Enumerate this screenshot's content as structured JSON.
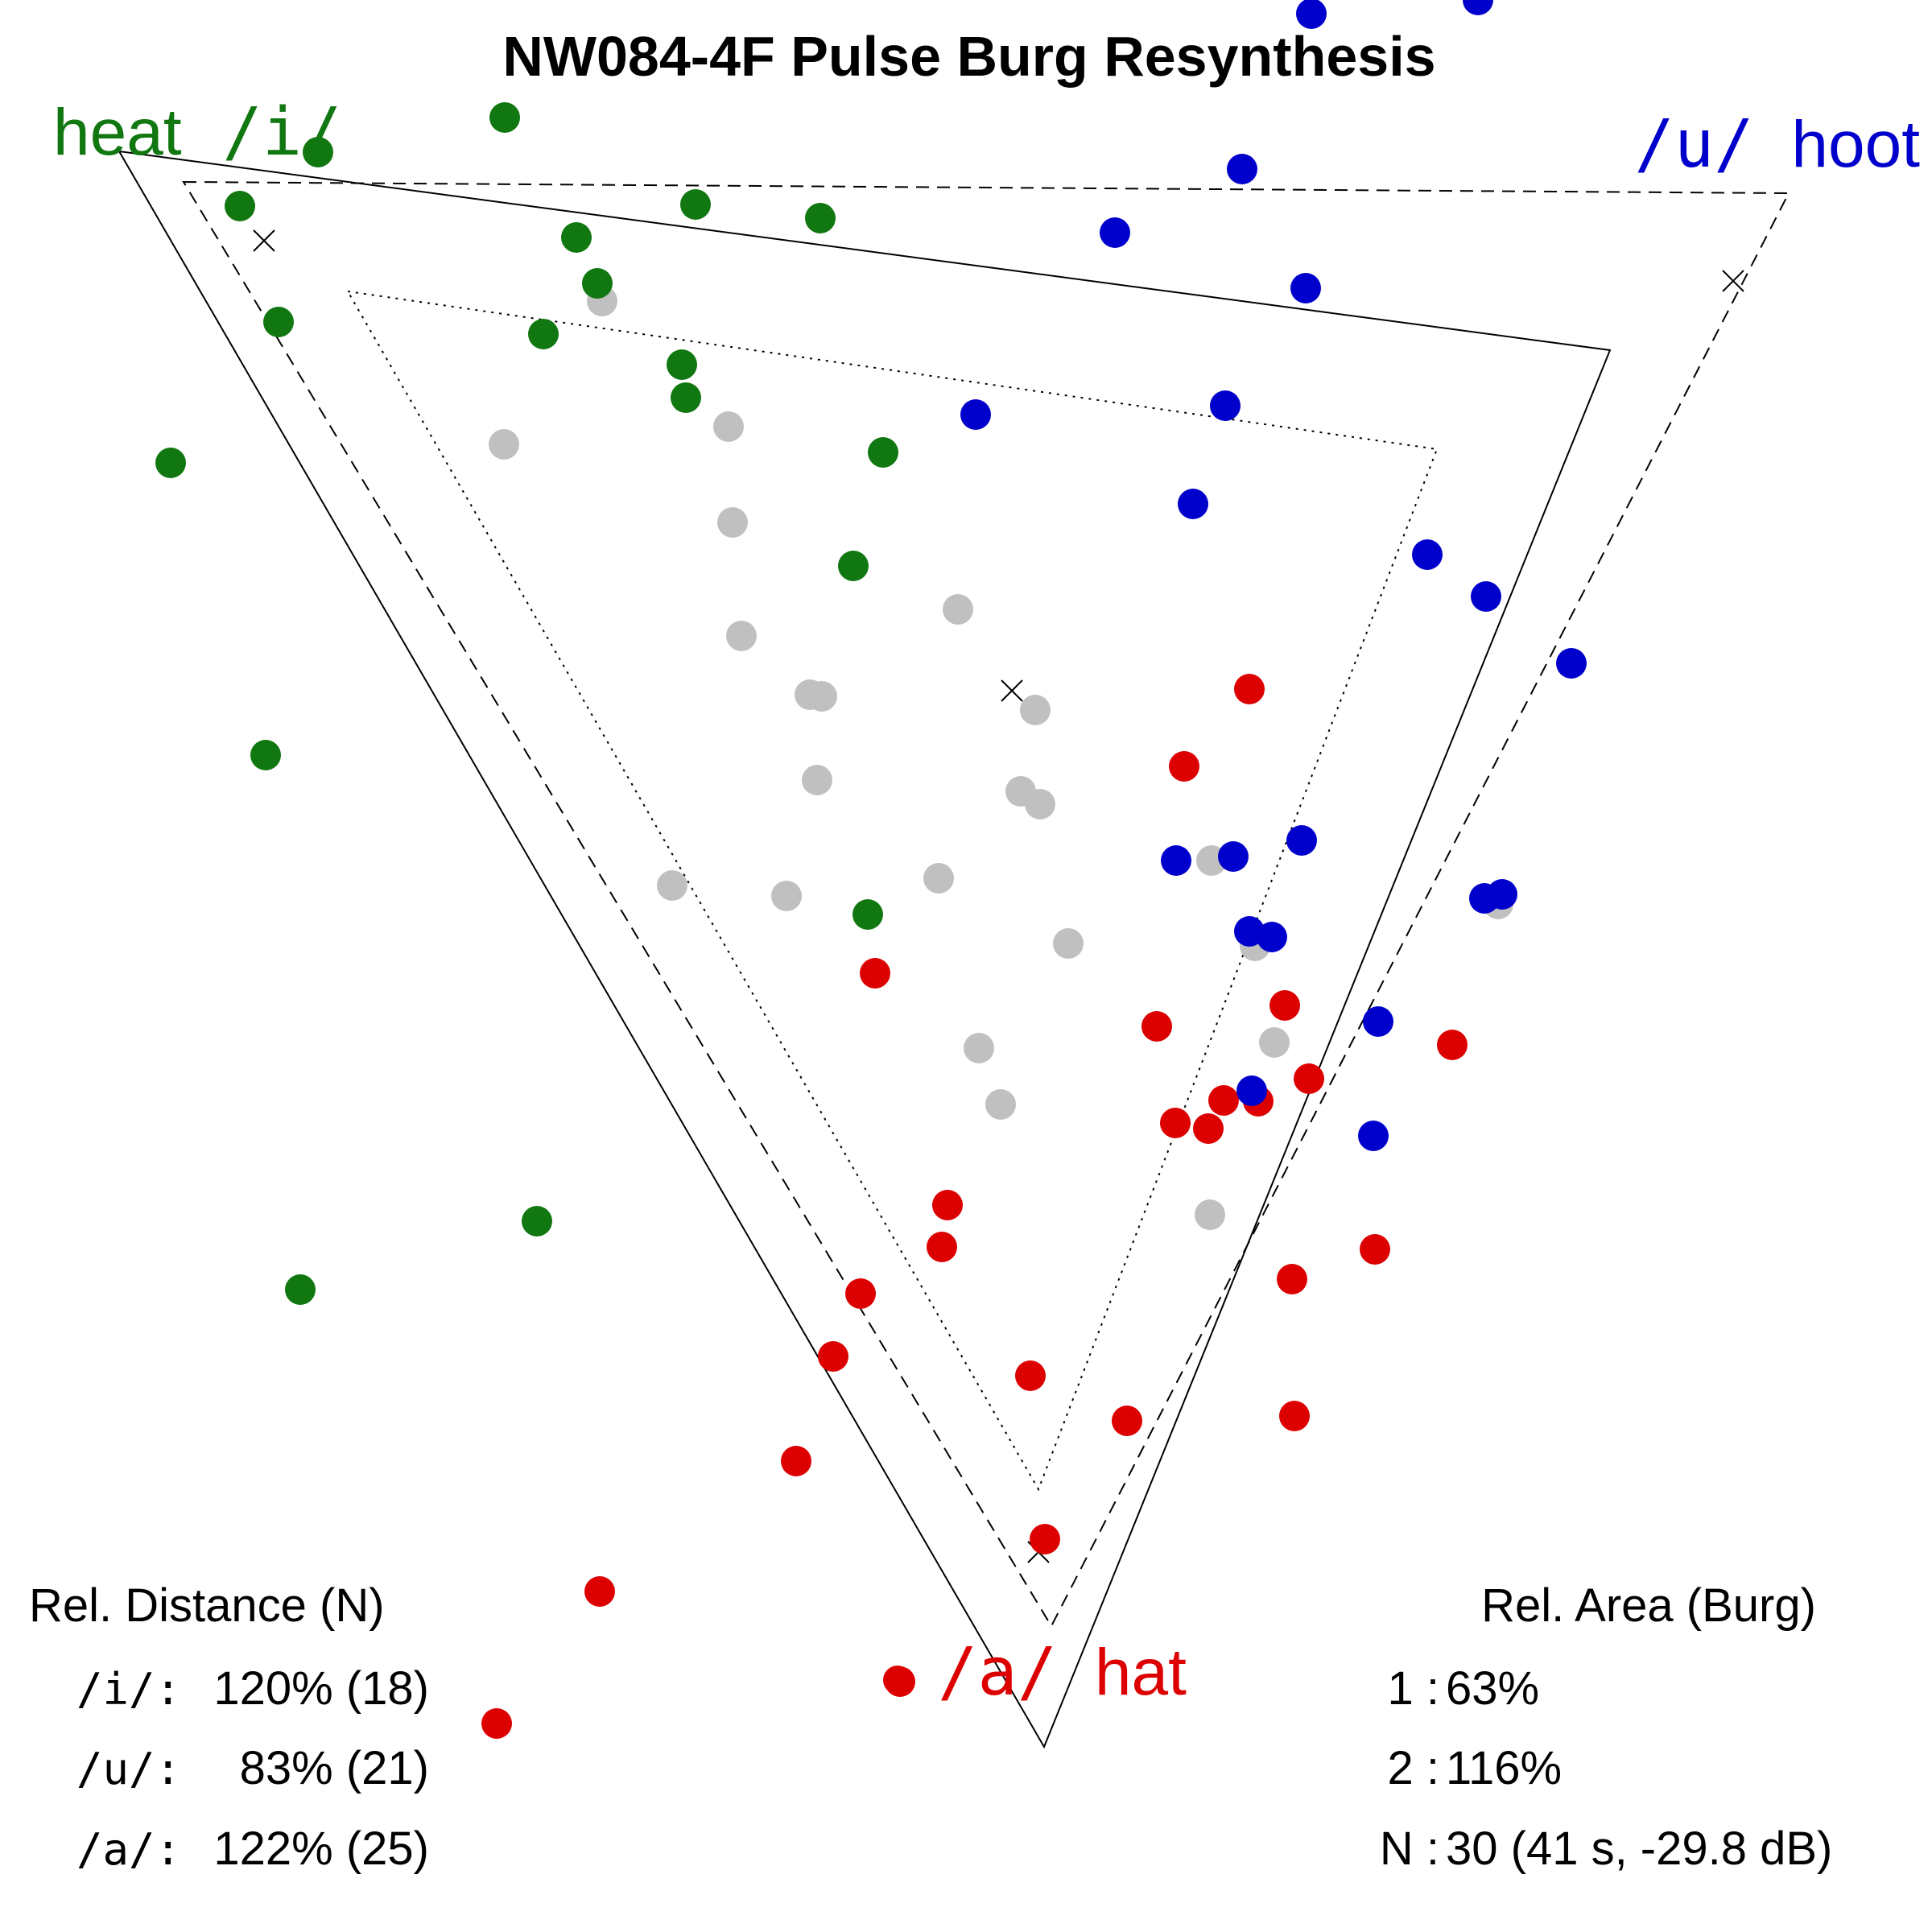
{
  "chart_data": {
    "type": "scatter",
    "title": "NW084-4F Pulse Burg Resynthesis",
    "x_range": [
      0,
      2400
    ],
    "y_range": [
      0,
      2400
    ],
    "grid": false,
    "vowel_labels": {
      "i": {
        "word": "heat",
        "ipa": "/i/",
        "color": "#117711"
      },
      "u": {
        "ipa": "/u/",
        "word": "hoot",
        "color": "#0000cc"
      },
      "a": {
        "ipa": "/a/",
        "word": "hat",
        "color": "#dd0000"
      }
    },
    "triangles": [
      {
        "style": "solid",
        "points": [
          [
            148,
            188
          ],
          [
            2000,
            435
          ],
          [
            1297,
            2170
          ]
        ]
      },
      {
        "style": "dashed",
        "points": [
          [
            228,
            226
          ],
          [
            2222,
            240
          ],
          [
            1306,
            2020
          ]
        ]
      },
      {
        "style": "dotted",
        "points": [
          [
            432,
            362
          ],
          [
            1785,
            558
          ],
          [
            1290,
            1850
          ]
        ]
      }
    ],
    "centroids": [
      [
        328,
        299
      ],
      [
        2153,
        349
      ],
      [
        1290,
        1928
      ],
      [
        1257,
        858
      ]
    ],
    "series": [
      {
        "name": "/i/",
        "color": "#117711",
        "points": [
          [
            627,
            146
          ],
          [
            395,
            189
          ],
          [
            298,
            256
          ],
          [
            864,
            254
          ],
          [
            1019,
            271
          ],
          [
            716,
            295
          ],
          [
            742,
            352
          ],
          [
            346,
            400
          ],
          [
            675,
            415
          ],
          [
            847,
            453
          ],
          [
            852,
            494
          ],
          [
            1097,
            562
          ],
          [
            212,
            575
          ],
          [
            1060,
            703
          ],
          [
            330,
            938
          ],
          [
            1078,
            1136
          ],
          [
            667,
            1517
          ],
          [
            373,
            1602
          ]
        ]
      },
      {
        "name": "/u/",
        "color": "#0000cc",
        "points": [
          [
            1629,
            17
          ],
          [
            1836,
            0
          ],
          [
            1543,
            210
          ],
          [
            1385,
            289
          ],
          [
            1622,
            358
          ],
          [
            1212,
            515
          ],
          [
            1522,
            504
          ],
          [
            1482,
            626
          ],
          [
            1773,
            689
          ],
          [
            1846,
            741
          ],
          [
            1952,
            824
          ],
          [
            1617,
            1044
          ],
          [
            1532,
            1064
          ],
          [
            1461,
            1069
          ],
          [
            1844,
            1116
          ],
          [
            1866,
            1111
          ],
          [
            1552,
            1157
          ],
          [
            1580,
            1164
          ],
          [
            1712,
            1269
          ],
          [
            1555,
            1355
          ],
          [
            1706,
            1411
          ]
        ]
      },
      {
        "name": "/a/",
        "color": "#dd0000",
        "points": [
          [
            1552,
            856
          ],
          [
            1471,
            952
          ],
          [
            1087,
            1209
          ],
          [
            1596,
            1249
          ],
          [
            1437,
            1275
          ],
          [
            1804,
            1298
          ],
          [
            1626,
            1340
          ],
          [
            1520,
            1367
          ],
          [
            1563,
            1368
          ],
          [
            1460,
            1395
          ],
          [
            1501,
            1402
          ],
          [
            1177,
            1497
          ],
          [
            1170,
            1549
          ],
          [
            1708,
            1552
          ],
          [
            1605,
            1589
          ],
          [
            1069,
            1607
          ],
          [
            1035,
            1685
          ],
          [
            1280,
            1709
          ],
          [
            1400,
            1765
          ],
          [
            1608,
            1759
          ],
          [
            989,
            1815
          ],
          [
            1298,
            1912
          ],
          [
            745,
            1977
          ],
          [
            1118,
            2089
          ],
          [
            617,
            2141
          ]
        ]
      },
      {
        "name": "unlabeled",
        "color": "#c0c0c0",
        "points": [
          [
            748,
            374
          ],
          [
            626,
            552
          ],
          [
            905,
            530
          ],
          [
            910,
            649
          ],
          [
            921,
            790
          ],
          [
            1190,
            757
          ],
          [
            1006,
            863
          ],
          [
            1021,
            865
          ],
          [
            1286,
            882
          ],
          [
            1015,
            969
          ],
          [
            1268,
            983
          ],
          [
            1292,
            999
          ],
          [
            1505,
            1069
          ],
          [
            835,
            1100
          ],
          [
            977,
            1113
          ],
          [
            1166,
            1091
          ],
          [
            1861,
            1123
          ],
          [
            1559,
            1175
          ],
          [
            1327,
            1172
          ],
          [
            1583,
            1295
          ],
          [
            1216,
            1302
          ],
          [
            1243,
            1372
          ],
          [
            1503,
            1509
          ]
        ]
      }
    ],
    "rel_distance": {
      "heading": "Rel. Distance (N)",
      "rows": [
        {
          "label": "/i/:",
          "value": "120% (18)"
        },
        {
          "label": "/u/:",
          "value": "83% (21)"
        },
        {
          "label": "/a/:",
          "value": "122% (25)"
        }
      ]
    },
    "rel_area": {
      "heading": "Rel. Area (Burg)",
      "rows": [
        {
          "label": "1 :",
          "value": "63%"
        },
        {
          "label": "2 :",
          "value": "116%"
        },
        {
          "label": "N :",
          "value": "30 (41 s, -29.8 dB)"
        }
      ]
    }
  }
}
